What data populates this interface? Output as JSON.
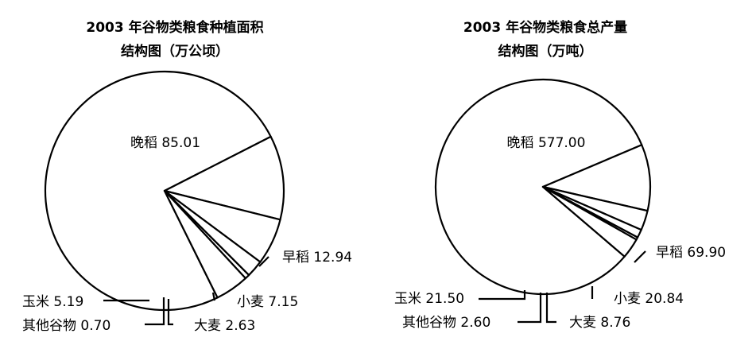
{
  "chart_data": [
    {
      "type": "pie",
      "title_lines": [
        "2003 年谷物类粮食种植面积",
        "结构图（万公顷）"
      ],
      "slices": [
        {
          "name": "晚稻",
          "value": 85.01,
          "value_text": "85.01"
        },
        {
          "name": "早稻",
          "value": 12.94,
          "value_text": "12.94"
        },
        {
          "name": "小麦",
          "value": 7.15,
          "value_text": "7.15"
        },
        {
          "name": "大麦",
          "value": 2.63,
          "value_text": "2.63"
        },
        {
          "name": "其他谷物",
          "value": 0.7,
          "value_text": "0.70"
        },
        {
          "name": "玉米",
          "value": 5.19,
          "value_text": "5.19"
        }
      ]
    },
    {
      "type": "pie",
      "title_lines": [
        "2003 年谷物类粮食总产量",
        "结构图（万吨）"
      ],
      "slices": [
        {
          "name": "晚稻",
          "value": 577.0,
          "value_text": "577.00"
        },
        {
          "name": "早稻",
          "value": 69.9,
          "value_text": "69.90"
        },
        {
          "name": "小麦",
          "value": 20.84,
          "value_text": "20.84"
        },
        {
          "name": "大麦",
          "value": 8.76,
          "value_text": "8.76"
        },
        {
          "name": "其他谷物",
          "value": 2.6,
          "value_text": "2.60"
        },
        {
          "name": "玉米",
          "value": 21.5,
          "value_text": "21.50"
        }
      ]
    }
  ]
}
